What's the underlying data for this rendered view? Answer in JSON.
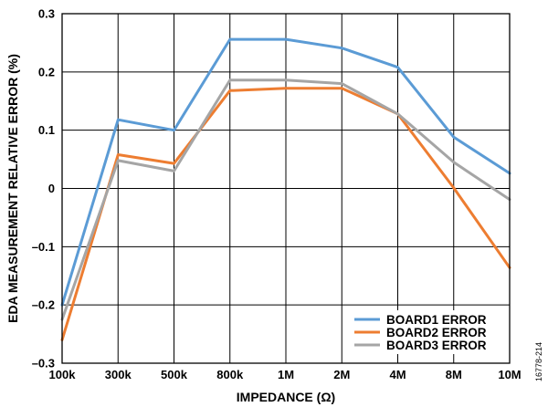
{
  "chart_data": {
    "type": "line",
    "xlabel": "IMPEDANCE (Ω)",
    "ylabel": "EDA MEASUREMENT RELATIVE ERROR (%)",
    "x": [
      "100k",
      "300k",
      "500k",
      "800k",
      "1M",
      "2M",
      "4M",
      "8M",
      "10M"
    ],
    "ylim": [
      -0.3,
      0.3
    ],
    "yticks": [
      0.3,
      0.2,
      0.1,
      0,
      -0.1,
      -0.2,
      -0.3
    ],
    "ytick_labels": [
      "0.3",
      "0.2",
      "0.1",
      "0",
      "–0.1",
      "–0.2",
      "–0.3"
    ],
    "grid": true,
    "legend": "bottom-right",
    "series": [
      {
        "name": "BOARD1 ERROR",
        "color": "#5b9bd5",
        "values": [
          -0.2,
          0.118,
          0.1,
          0.256,
          0.256,
          0.241,
          0.208,
          0.088,
          0.026
        ]
      },
      {
        "name": "BOARD2 ERROR",
        "color": "#ed7d31",
        "values": [
          -0.26,
          0.058,
          0.043,
          0.168,
          0.172,
          0.172,
          0.128,
          0.001,
          -0.136
        ]
      },
      {
        "name": "BOARD3 ERROR",
        "color": "#a5a5a5",
        "values": [
          -0.225,
          0.048,
          0.03,
          0.186,
          0.186,
          0.18,
          0.128,
          0.045,
          -0.019
        ]
      }
    ]
  },
  "figure_id": "16778-214"
}
